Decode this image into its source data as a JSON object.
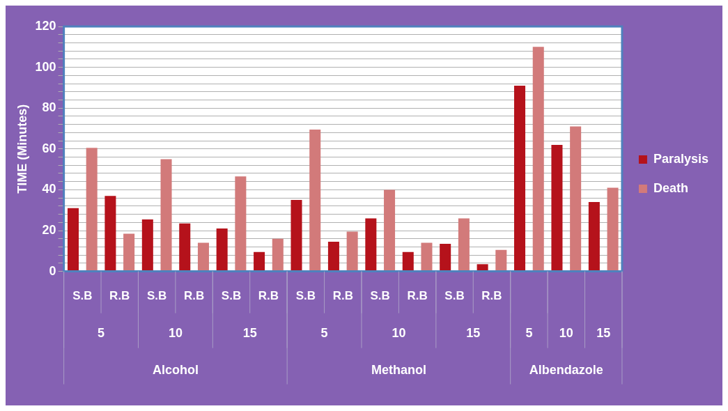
{
  "chart_data": {
    "type": "bar",
    "ylabel": "TIME (Minutes)",
    "categories": [
      "S.B",
      "R.B",
      "S.B",
      "R.B",
      "S.B",
      "R.B",
      "S.B",
      "R.B",
      "S.B",
      "R.B",
      "S.B",
      "R.B",
      null,
      null,
      null
    ],
    "annotations": [
      "5",
      "10",
      "15",
      "5",
      "10",
      "15",
      "5",
      "10",
      "15",
      "Alcohol",
      "Methanol",
      "Albendazole"
    ],
    "series": [
      {
        "name": "Paralysis",
        "color": "#b5121b",
        "values": [
          31,
          37,
          25.5,
          23.5,
          21,
          9.5,
          35,
          14.5,
          26,
          9.5,
          13.5,
          3.5,
          91,
          62,
          34
        ]
      },
      {
        "name": "Death",
        "color": "#d27a7a",
        "values": [
          60.5,
          18.5,
          55,
          14,
          46.5,
          16,
          69.5,
          19.5,
          40,
          14,
          26,
          10.5,
          110,
          71,
          41
        ]
      }
    ],
    "ylim": [
      0,
      120
    ],
    "yticks": [
      0,
      {
        "value": 4,
        "label": null
      },
      {
        "value": 8,
        "label": null
      },
      {
        "value": 12,
        "label": null
      },
      {
        "value": 16,
        "label": null
      },
      20,
      {
        "value": 24,
        "label": null
      },
      {
        "value": 28,
        "label": null
      },
      {
        "value": 32,
        "label": null
      },
      {
        "value": 36,
        "label": null
      },
      40,
      {
        "value": 44,
        "label": null
      },
      {
        "value": 48,
        "label": null
      },
      {
        "value": 52,
        "label": null
      },
      {
        "value": 56,
        "label": null
      },
      60,
      {
        "value": 64,
        "label": null
      },
      {
        "value": 68,
        "label": null
      },
      {
        "value": 72,
        "label": null
      },
      {
        "value": 76,
        "label": null
      },
      80,
      {
        "value": 84,
        "label": null
      },
      {
        "value": 88,
        "label": null
      },
      {
        "value": 92,
        "label": null
      },
      {
        "value": 96,
        "label": null
      },
      100,
      {
        "value": 104,
        "label": null
      },
      {
        "value": 108,
        "label": null
      },
      {
        "value": 112,
        "label": null
      },
      {
        "value": 116,
        "label": null
      },
      120
    ],
    "grid": "y",
    "legend": "right"
  }
}
